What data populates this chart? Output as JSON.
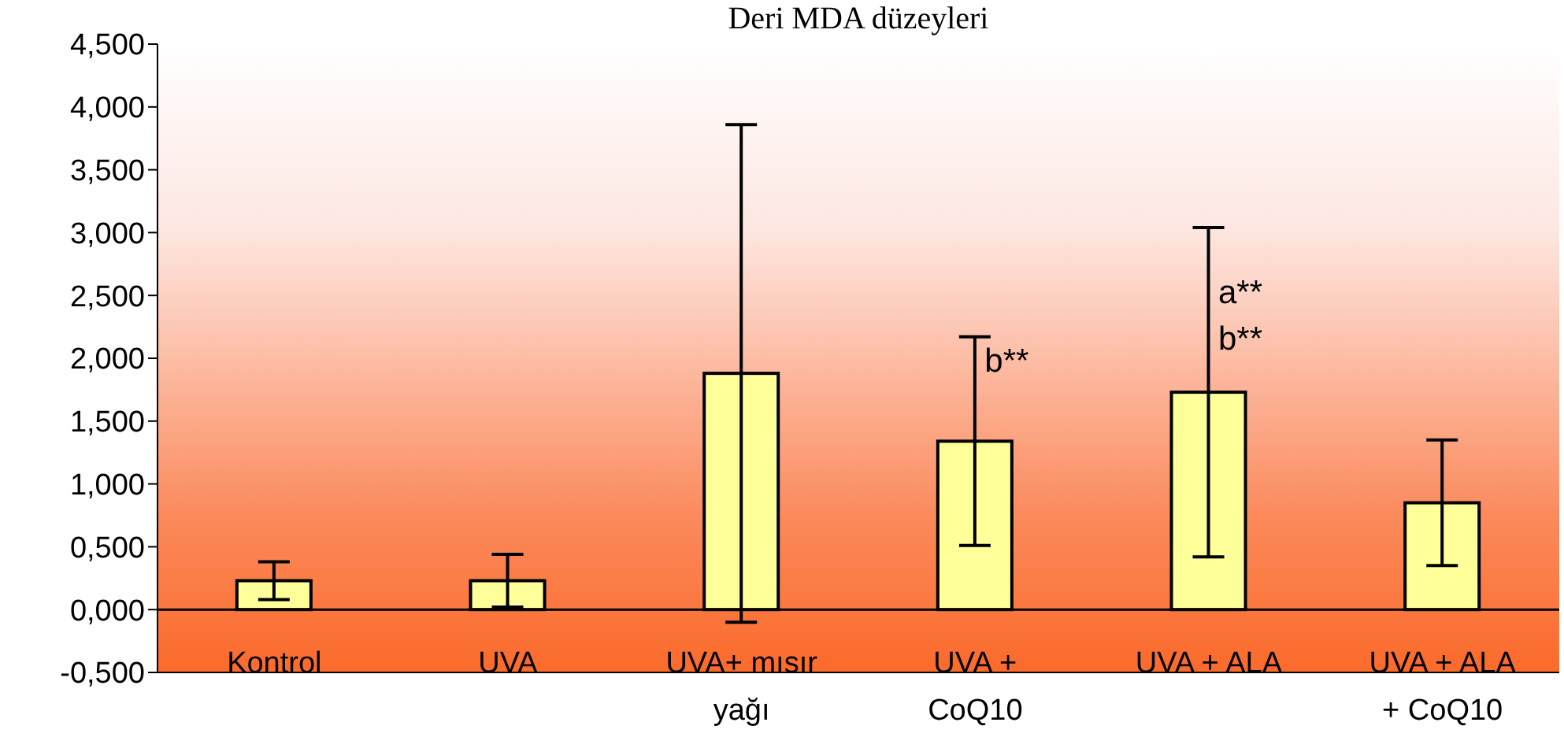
{
  "chart_data": {
    "type": "bar",
    "title": "Deri  MDA düzeyleri",
    "categories": [
      "Kontrol",
      "UVA",
      "UVA+ mısır yağı",
      "UVA + CoQ10",
      "UVA + ALA",
      "UVA + ALA + CoQ10"
    ],
    "values": [
      0.23,
      0.23,
      1.88,
      1.34,
      1.73,
      0.85
    ],
    "errors": [
      0.15,
      0.21,
      1.98,
      0.83,
      1.31,
      0.5
    ],
    "color": "#ffff99",
    "ylim": [
      -0.5,
      4.5
    ],
    "yticks": [
      {
        "value": -0.5,
        "label": "-0,500"
      },
      {
        "value": 0,
        "label": "0,000"
      },
      {
        "value": 0.5,
        "label": "0,500"
      },
      {
        "value": 1,
        "label": "1,000"
      },
      {
        "value": 1.5,
        "label": "1,500"
      },
      {
        "value": 2,
        "label": "2,000"
      },
      {
        "value": 2.5,
        "label": "2,500"
      },
      {
        "value": 3,
        "label": "3,000"
      },
      {
        "value": 3.5,
        "label": "3,500"
      },
      {
        "value": 4,
        "label": "4,000"
      },
      {
        "value": 4.5,
        "label": "4,500"
      }
    ],
    "ref_lines": [
      {
        "axis": "y",
        "value": 0,
        "color": "#000000"
      }
    ],
    "annotations": [
      {
        "text": "b**",
        "x": "UVA + CoQ10",
        "y": 1.99
      },
      {
        "text": "a**",
        "x": "UVA + ALA",
        "y": 2.53
      },
      {
        "text": "b**",
        "x": "UVA + ALA",
        "y": 2.16
      }
    ],
    "grid": false
  }
}
